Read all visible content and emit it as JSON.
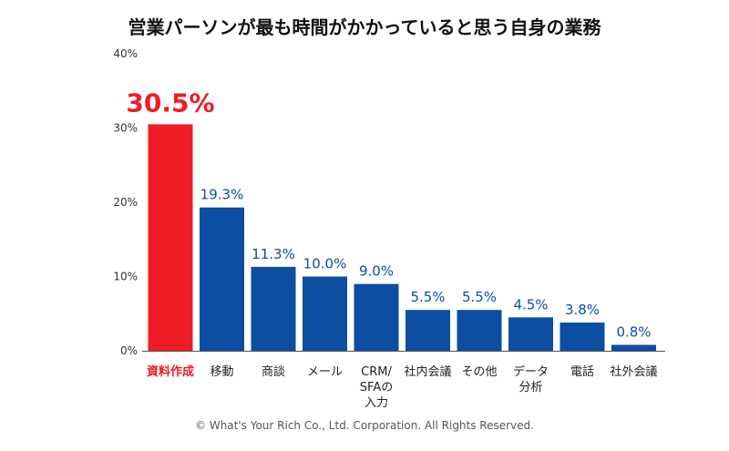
{
  "chart_data": {
    "type": "bar",
    "title": "営業パーソンが最も時間がかかっていると思う自身の業務",
    "categories": [
      "資料作成",
      "移動",
      "商談",
      "メール",
      "CRM/\nSFAの\n入力",
      "社内会議",
      "その他",
      "データ\n分析",
      "電話",
      "社外会議"
    ],
    "values": [
      30.5,
      19.3,
      11.3,
      10.0,
      9.0,
      5.5,
      5.5,
      4.5,
      3.8,
      0.8
    ],
    "value_labels": [
      "30.5%",
      "19.3%",
      "11.3%",
      "10.0%",
      "9.0%",
      "5.5%",
      "5.5%",
      "4.5%",
      "3.8%",
      "0.8%"
    ],
    "yticks": [
      "0%",
      "10%",
      "20%",
      "30%",
      "40%"
    ],
    "ylim": [
      0,
      40
    ],
    "xlabel": "",
    "ylabel": "",
    "grid": false,
    "highlight_index": 0,
    "colors": {
      "highlight": "#ee1c24",
      "bar": "#0b4ea2",
      "axis": "#555555"
    }
  },
  "copyright": "© What's Your Rich Co., Ltd. Corporation. All Rights Reserved."
}
